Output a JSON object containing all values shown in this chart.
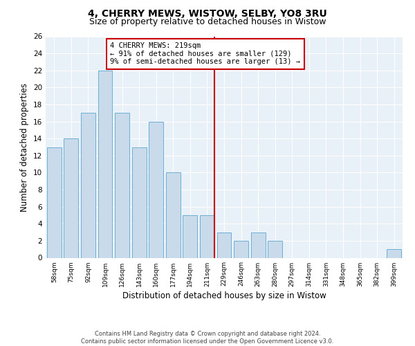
{
  "title1": "4, CHERRY MEWS, WISTOW, SELBY, YO8 3RU",
  "title2": "Size of property relative to detached houses in Wistow",
  "xlabel": "Distribution of detached houses by size in Wistow",
  "ylabel": "Number of detached properties",
  "categories": [
    "58sqm",
    "75sqm",
    "92sqm",
    "109sqm",
    "126sqm",
    "143sqm",
    "160sqm",
    "177sqm",
    "194sqm",
    "211sqm",
    "229sqm",
    "246sqm",
    "263sqm",
    "280sqm",
    "297sqm",
    "314sqm",
    "331sqm",
    "348sqm",
    "365sqm",
    "382sqm",
    "399sqm"
  ],
  "values": [
    13,
    14,
    17,
    22,
    17,
    13,
    16,
    10,
    5,
    5,
    3,
    2,
    3,
    2,
    0,
    0,
    0,
    0,
    0,
    0,
    1
  ],
  "bar_color": "#c9daea",
  "bar_edge_color": "#6baed6",
  "vline_x": 9.44,
  "vline_color": "#cc0000",
  "annotation_text": "4 CHERRY MEWS: 219sqm\n← 91% of detached houses are smaller (129)\n9% of semi-detached houses are larger (13) →",
  "annotation_box_color": "#cc0000",
  "ylim": [
    0,
    26
  ],
  "yticks": [
    0,
    2,
    4,
    6,
    8,
    10,
    12,
    14,
    16,
    18,
    20,
    22,
    24,
    26
  ],
  "background_color": "#e8f0f8",
  "footer_line1": "Contains HM Land Registry data © Crown copyright and database right 2024.",
  "footer_line2": "Contains public sector information licensed under the Open Government Licence v3.0.",
  "title_fontsize": 10,
  "subtitle_fontsize": 9,
  "xlabel_fontsize": 8.5,
  "ylabel_fontsize": 8.5,
  "ann_fontsize": 7.5
}
